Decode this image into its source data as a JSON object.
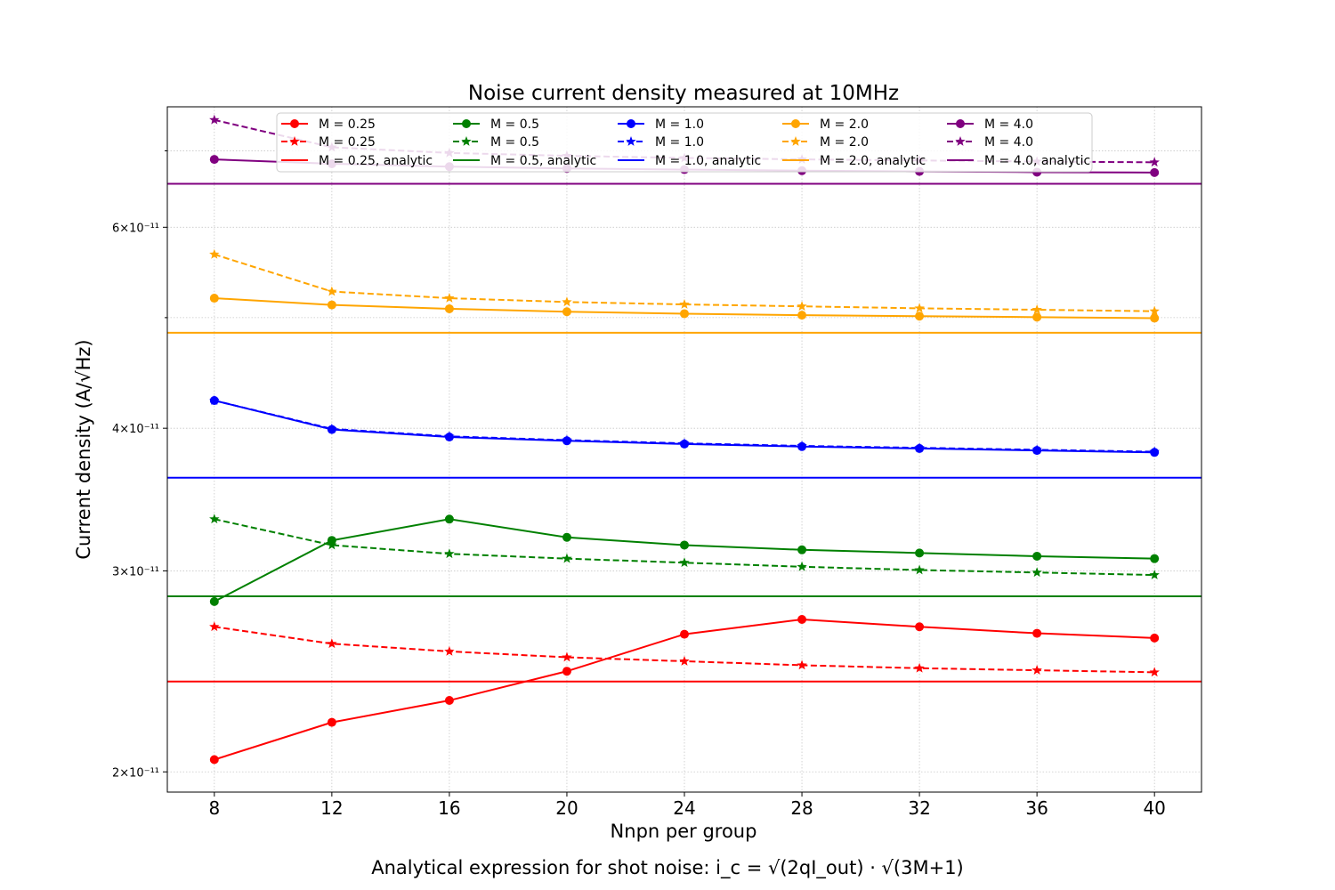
{
  "chart_data": {
    "type": "line",
    "title": "Noise current density measured at 10MHz",
    "xlabel": "Nnpn per group",
    "ylabel": "Current density (A/√Hz)",
    "caption": "Analytical expression for shot noise: i_c = √(2qI_out) · √(3M+1)",
    "y_scale": "log",
    "xlim": [
      6.4,
      41.6
    ],
    "ylim": [
      1.92e-11,
      7.65e-11
    ],
    "grid": true,
    "legend_position": "top-center",
    "x": [
      8,
      12,
      16,
      20,
      24,
      28,
      32,
      36,
      40
    ],
    "xticks": [
      "8",
      "12",
      "16",
      "20",
      "24",
      "28",
      "32",
      "36",
      "40"
    ],
    "yticks": [
      {
        "value": 2e-11,
        "label": "2×10⁻¹¹"
      },
      {
        "value": 3e-11,
        "label": "3×10⁻¹¹"
      },
      {
        "value": 4e-11,
        "label": "4×10⁻¹¹"
      },
      {
        "value": 6e-11,
        "label": "6×10⁻¹¹"
      }
    ],
    "minor_gridlines": [
      5e-11,
      7e-11
    ],
    "series": [
      {
        "name": "M = 0.25",
        "color": "#ff0000",
        "style": "solid",
        "marker": "circle",
        "values": [
          2.05e-11,
          2.21e-11,
          2.31e-11,
          2.45e-11,
          2.64e-11,
          2.72e-11,
          2.68e-11,
          2.645e-11,
          2.62e-11
        ]
      },
      {
        "name": "M = 0.25",
        "color": "#ff0000",
        "style": "dashed",
        "marker": "star",
        "values": [
          2.68e-11,
          2.59e-11,
          2.55e-11,
          2.52e-11,
          2.5e-11,
          2.48e-11,
          2.465e-11,
          2.455e-11,
          2.445e-11
        ]
      },
      {
        "name": "M = 0.25, analytic",
        "color": "#ff0000",
        "style": "solid",
        "marker": "none",
        "constant": 2.4e-11
      },
      {
        "name": "M = 0.5",
        "color": "#008000",
        "style": "solid",
        "marker": "circle",
        "values": [
          2.82e-11,
          3.19e-11,
          3.33e-11,
          3.21e-11,
          3.16e-11,
          3.13e-11,
          3.11e-11,
          3.09e-11,
          3.075e-11
        ]
      },
      {
        "name": "M = 0.5",
        "color": "#008000",
        "style": "dashed",
        "marker": "star",
        "values": [
          3.33e-11,
          3.16e-11,
          3.105e-11,
          3.075e-11,
          3.05e-11,
          3.025e-11,
          3.005e-11,
          2.99e-11,
          2.975e-11
        ]
      },
      {
        "name": "M = 0.5, analytic",
        "color": "#008000",
        "style": "solid",
        "marker": "none",
        "constant": 2.85e-11
      },
      {
        "name": "M = 1.0",
        "color": "#0000ff",
        "style": "solid",
        "marker": "circle",
        "values": [
          4.23e-11,
          3.99e-11,
          3.93e-11,
          3.9e-11,
          3.875e-11,
          3.855e-11,
          3.84e-11,
          3.825e-11,
          3.81e-11
        ]
      },
      {
        "name": "M = 1.0",
        "color": "#0000ff",
        "style": "dashed",
        "marker": "star",
        "values": [
          4.23e-11,
          3.995e-11,
          3.935e-11,
          3.905e-11,
          3.88e-11,
          3.86e-11,
          3.845e-11,
          3.83e-11,
          3.815e-11
        ]
      },
      {
        "name": "M = 1.0, analytic",
        "color": "#0000ff",
        "style": "solid",
        "marker": "none",
        "constant": 3.62e-11
      },
      {
        "name": "M = 2.0",
        "color": "#ffa500",
        "style": "solid",
        "marker": "circle",
        "values": [
          5.2e-11,
          5.13e-11,
          5.09e-11,
          5.06e-11,
          5.04e-11,
          5.025e-11,
          5.015e-11,
          5.005e-11,
          4.995e-11
        ]
      },
      {
        "name": "M = 2.0",
        "color": "#ffa500",
        "style": "dashed",
        "marker": "star",
        "values": [
          5.68e-11,
          5.27e-11,
          5.2e-11,
          5.16e-11,
          5.135e-11,
          5.115e-11,
          5.095e-11,
          5.08e-11,
          5.065e-11
        ]
      },
      {
        "name": "M = 2.0, analytic",
        "color": "#ffa500",
        "style": "solid",
        "marker": "none",
        "constant": 4.85e-11
      },
      {
        "name": "M = 4.0",
        "color": "#800080",
        "style": "solid",
        "marker": "circle",
        "values": [
          6.88e-11,
          6.82e-11,
          6.78e-11,
          6.755e-11,
          6.74e-11,
          6.725e-11,
          6.715e-11,
          6.705e-11,
          6.7e-11
        ]
      },
      {
        "name": "M = 4.0",
        "color": "#800080",
        "style": "dashed",
        "marker": "star",
        "values": [
          7.45e-11,
          7.05e-11,
          6.97e-11,
          6.93e-11,
          6.9e-11,
          6.88e-11,
          6.865e-11,
          6.85e-11,
          6.84e-11
        ]
      },
      {
        "name": "M = 4.0, analytic",
        "color": "#800080",
        "style": "solid",
        "marker": "none",
        "constant": 6.55e-11
      }
    ]
  }
}
